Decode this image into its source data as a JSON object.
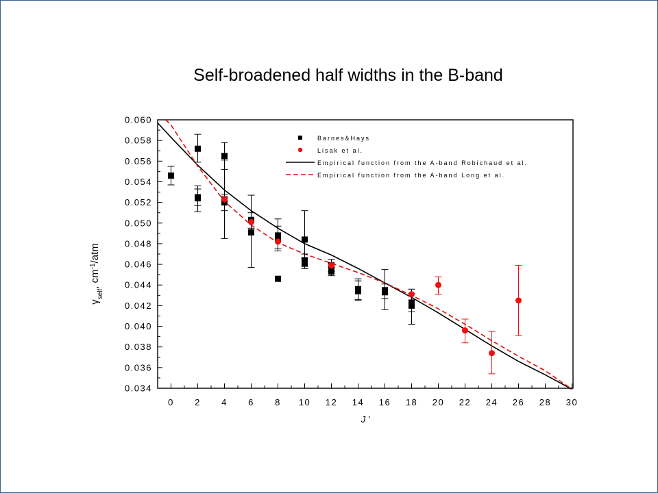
{
  "slide": {
    "title": "Self-broadened half widths in the B-band"
  },
  "chart_data": {
    "type": "scatter",
    "title": "Self-broadened half widths in the B-band",
    "xlabel": "J ′",
    "ylabel": {
      "base": "γ",
      "sub": "self",
      "mid": ", cm",
      "sup": "-1",
      "end": "/atm"
    },
    "xlim": [
      -1,
      30
    ],
    "ylim": [
      0.034,
      0.06
    ],
    "xticks": [
      "0",
      "2",
      "4",
      "6",
      "8",
      "10",
      "12",
      "14",
      "16",
      "18",
      "20",
      "22",
      "24",
      "26",
      "28",
      "30"
    ],
    "yticks": [
      "0.034",
      "0.036",
      "0.038",
      "0.040",
      "0.042",
      "0.044",
      "0.046",
      "0.048",
      "0.050",
      "0.052",
      "0.054",
      "0.056",
      "0.058",
      "0.060"
    ],
    "legend_position": "top-right",
    "series": [
      {
        "name": "Barnes&Hays",
        "kind": "points",
        "marker": "square",
        "color": "#000000",
        "points": [
          {
            "x": 0,
            "y": 0.0546,
            "lo": 0.0537,
            "hi": 0.0555
          },
          {
            "x": 2,
            "y": 0.0572,
            "lo": 0.0559,
            "hi": 0.0586
          },
          {
            "x": 2,
            "y": 0.0524,
            "lo": 0.0517,
            "hi": 0.0533
          },
          {
            "x": 2,
            "y": 0.0525,
            "lo": 0.0511,
            "hi": 0.0536
          },
          {
            "x": 4,
            "y": 0.0565,
            "lo": 0.0552,
            "hi": 0.0578
          },
          {
            "x": 4,
            "y": 0.0523,
            "lo": 0.0485,
            "hi": 0.0561
          },
          {
            "x": 4,
            "y": 0.052,
            "lo": 0.0512,
            "hi": 0.0528
          },
          {
            "x": 6,
            "y": 0.0503,
            "lo": 0.0495,
            "hi": 0.051
          },
          {
            "x": 6,
            "y": 0.0491,
            "lo": 0.0457,
            "hi": 0.0527
          },
          {
            "x": 8,
            "y": 0.0488,
            "lo": 0.0473,
            "hi": 0.0504
          },
          {
            "x": 8,
            "y": 0.0485,
            "lo": 0.0475,
            "hi": 0.0497
          },
          {
            "x": 8,
            "y": 0.0446
          },
          {
            "x": 10,
            "y": 0.0484,
            "lo": 0.0456,
            "hi": 0.0512
          },
          {
            "x": 10,
            "y": 0.0464,
            "lo": 0.0458,
            "hi": 0.047
          },
          {
            "x": 10,
            "y": 0.0461,
            "lo": 0.0456,
            "hi": 0.0466
          },
          {
            "x": 12,
            "y": 0.0459,
            "lo": 0.0453,
            "hi": 0.0465
          },
          {
            "x": 12,
            "y": 0.0453,
            "lo": 0.0449,
            "hi": 0.0457
          },
          {
            "x": 14,
            "y": 0.0436,
            "lo": 0.0425,
            "hi": 0.0446
          },
          {
            "x": 14,
            "y": 0.0434,
            "lo": 0.0426,
            "hi": 0.0444
          },
          {
            "x": 16,
            "y": 0.0435,
            "lo": 0.0416,
            "hi": 0.0455
          },
          {
            "x": 16,
            "y": 0.0433,
            "lo": 0.0427,
            "hi": 0.0441
          },
          {
            "x": 18,
            "y": 0.0423,
            "lo": 0.0414,
            "hi": 0.0432
          },
          {
            "x": 18,
            "y": 0.042,
            "lo": 0.0402,
            "hi": 0.0436
          }
        ]
      },
      {
        "name": "Lisak et al.",
        "kind": "points",
        "marker": "circle",
        "color": "#ee1111",
        "points": [
          {
            "x": 4,
            "y": 0.0523
          },
          {
            "x": 6,
            "y": 0.0501
          },
          {
            "x": 8,
            "y": 0.0482
          },
          {
            "x": 12,
            "y": 0.0459
          },
          {
            "x": 18,
            "y": 0.0431
          },
          {
            "x": 20,
            "y": 0.044,
            "lo": 0.0431,
            "hi": 0.0448
          },
          {
            "x": 22,
            "y": 0.0396,
            "lo": 0.0384,
            "hi": 0.0407
          },
          {
            "x": 24,
            "y": 0.0374,
            "lo": 0.0354,
            "hi": 0.0395
          },
          {
            "x": 26,
            "y": 0.0425,
            "lo": 0.0391,
            "hi": 0.0459
          }
        ]
      },
      {
        "name": "Empirical function from the A-band Robichaud et al.",
        "kind": "line",
        "color": "#000000",
        "dash": "solid",
        "x": [
          -1,
          0,
          2,
          4,
          6,
          8,
          10,
          12,
          14,
          16,
          18,
          20,
          22,
          24,
          26,
          28,
          30
        ],
        "y": [
          0.0597,
          0.0583,
          0.0556,
          0.0532,
          0.0512,
          0.0495,
          0.048,
          0.0469,
          0.0456,
          0.0442,
          0.0428,
          0.0413,
          0.0397,
          0.0381,
          0.0366,
          0.0353,
          0.0339
        ]
      },
      {
        "name": "Empirical function from the A-band Long et al.",
        "kind": "line",
        "color": "#dd1111",
        "dash": "dashed",
        "x": [
          -0.4,
          0,
          2,
          4,
          6,
          8,
          10,
          12,
          14,
          16,
          18,
          20,
          22,
          24,
          26,
          28,
          30
        ],
        "y": [
          0.06,
          0.0595,
          0.0555,
          0.0521,
          0.0498,
          0.0481,
          0.047,
          0.0461,
          0.0452,
          0.0442,
          0.043,
          0.0417,
          0.0402,
          0.0386,
          0.0371,
          0.0357,
          0.0339
        ]
      }
    ]
  }
}
